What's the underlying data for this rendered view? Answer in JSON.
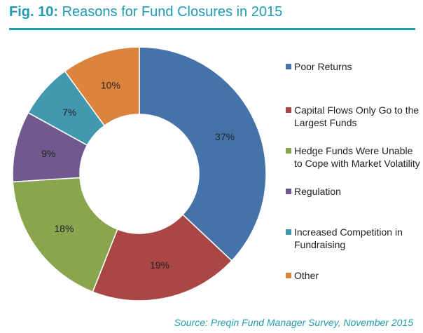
{
  "title": {
    "prefix": "Fig. 10:",
    "text": "Reasons for Fund Closures in 2015"
  },
  "source": "Source: Preqin Fund Manager Survey, November 2015",
  "colors": {
    "accent": "#1f9bb3"
  },
  "chart_data": {
    "type": "pie",
    "hole": "donut",
    "title": "Reasons for Fund Closures in 2015",
    "legend_position": "right",
    "slices": [
      {
        "name": "Poor Returns",
        "value": 37,
        "label": "37%",
        "color": "#4572a7"
      },
      {
        "name": "Capital Flows Only Go to the Largest Funds",
        "value": 19,
        "label": "19%",
        "color": "#aa4643"
      },
      {
        "name": "Hedge Funds Were Unable to Cope with Market Volatility",
        "value": 18,
        "label": "18%",
        "color": "#89a54e"
      },
      {
        "name": "Regulation",
        "value": 9,
        "label": "9%",
        "color": "#71588f"
      },
      {
        "name": "Increased Competition in Fundraising",
        "value": 7,
        "label": "7%",
        "color": "#4198af"
      },
      {
        "name": "Other",
        "value": 10,
        "label": "10%",
        "color": "#db843d"
      }
    ]
  },
  "legend": {
    "items": [
      {
        "label": "Poor Returns",
        "color": "#4572a7"
      },
      {
        "label": "Capital Flows Only Go to the Largest Funds",
        "color": "#aa4643"
      },
      {
        "label": "Hedge Funds Were Unable to Cope with Market Volatility",
        "color": "#89a54e"
      },
      {
        "label": "Regulation",
        "color": "#71588f"
      },
      {
        "label": "Increased Competition in Fundraising",
        "color": "#4198af"
      },
      {
        "label": "Other",
        "color": "#db843d"
      }
    ]
  }
}
